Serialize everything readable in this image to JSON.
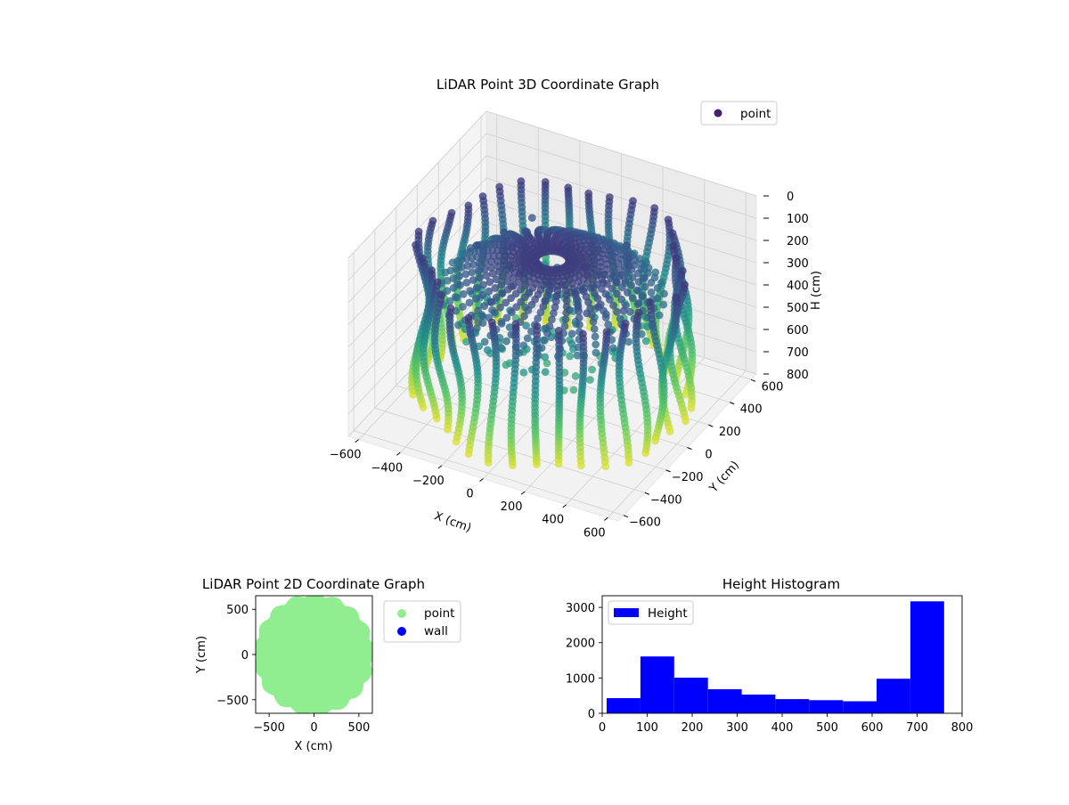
{
  "chart_data": [
    {
      "type": "scatter",
      "projection": "3d",
      "title": "LiDAR Point 3D Coordinate Graph",
      "xlabel": "X (cm)",
      "ylabel": "Y (cm)",
      "zlabel": "H (cm)",
      "xlim": [
        -650,
        650
      ],
      "ylim": [
        -650,
        650
      ],
      "zlim": [
        800,
        0
      ],
      "x_ticks": [
        -600,
        -400,
        -200,
        0,
        200,
        400,
        600
      ],
      "y_ticks": [
        -600,
        -400,
        -200,
        0,
        200,
        400,
        600
      ],
      "z_ticks": [
        0,
        100,
        200,
        300,
        400,
        500,
        600,
        700,
        800
      ],
      "z_inverted": true,
      "colormap": "viridis",
      "colormap_stops": [
        "#440154",
        "#3b528b",
        "#21918c",
        "#5ec962",
        "#fde725"
      ],
      "legend": [
        {
          "label": "point",
          "color": "#46206e"
        }
      ],
      "legend_position": "upper right",
      "grid": true,
      "description_of_data": {
        "outer_wall_radius_cm": 600,
        "scan_lines": 36,
        "inner_canopy_radius_cm": 480,
        "height_range_cm": [
          0,
          760
        ]
      }
    },
    {
      "type": "scatter",
      "title": "LiDAR Point 2D Coordinate Graph",
      "xlabel": "X (cm)",
      "ylabel": "Y (cm)",
      "xlim": [
        -650,
        650
      ],
      "ylim": [
        -650,
        650
      ],
      "x_ticks": [
        -500,
        0,
        500
      ],
      "y_ticks": [
        -500,
        0,
        500
      ],
      "series": [
        {
          "name": "point",
          "color": "#90ee90",
          "shape": "filled disc radius ≈ 600 cm"
        },
        {
          "name": "wall",
          "color": "#0000ff",
          "points": []
        }
      ],
      "legend_position": "outside right"
    },
    {
      "type": "bar",
      "subtype": "histogram",
      "title": "Height Histogram",
      "bin_edges": [
        10,
        85,
        160,
        235,
        310,
        385,
        460,
        535,
        610,
        685,
        760
      ],
      "values": [
        430,
        1610,
        1010,
        680,
        530,
        400,
        370,
        340,
        980,
        3170
      ],
      "xlim": [
        0,
        800
      ],
      "ylim": [
        0,
        3330
      ],
      "x_ticks": [
        0,
        100,
        200,
        300,
        400,
        500,
        600,
        700,
        800
      ],
      "y_ticks": [
        0,
        1000,
        2000,
        3000
      ],
      "color": "#0000ff",
      "series": [
        {
          "name": "Height"
        }
      ],
      "legend_position": "upper left"
    }
  ]
}
